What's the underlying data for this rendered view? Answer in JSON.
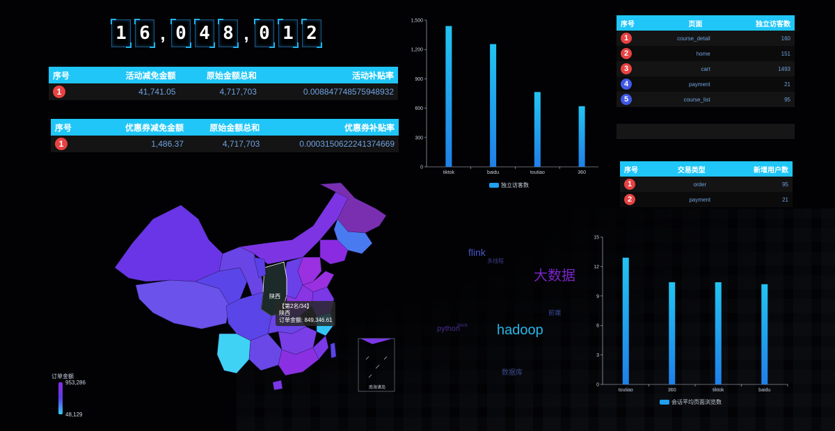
{
  "counter": {
    "chars": [
      "1",
      "6",
      ",",
      "0",
      "4",
      "8",
      ",",
      "0",
      "1",
      "2"
    ]
  },
  "activity_table": {
    "headers": [
      "序号",
      "活动减免金额",
      "原始金额总和",
      "活动补贴率"
    ],
    "rows": [
      {
        "rank": "1",
        "discount": "41,741.05",
        "total": "4,717,703",
        "rate": "0.008847748575948932"
      }
    ]
  },
  "coupon_table": {
    "headers": [
      "序号",
      "优惠券减免金额",
      "原始金额总和",
      "优惠券补贴率"
    ],
    "rows": [
      {
        "rank": "1",
        "discount": "1,486.37",
        "total": "4,717,703",
        "rate": "0.0003150622241374669"
      }
    ]
  },
  "page_table": {
    "headers": [
      "序号",
      "页面",
      "独立访客数"
    ],
    "rows": [
      {
        "rank": "1",
        "page": "course_detail",
        "visitors": "160",
        "color": "#e84242"
      },
      {
        "rank": "2",
        "page": "home",
        "visitors": "151",
        "color": "#e84242"
      },
      {
        "rank": "3",
        "page": "cart",
        "visitors": "1493",
        "color": "#e84242"
      },
      {
        "rank": "4",
        "page": "payment",
        "visitors": "21",
        "color": "#3f58e6"
      },
      {
        "rank": "5",
        "page": "course_list",
        "visitors": "95",
        "color": "#3f58e6"
      }
    ]
  },
  "trade_table": {
    "headers": [
      "序号",
      "交易类型",
      "新增用户数"
    ],
    "rows": [
      {
        "rank": "1",
        "type": "order",
        "count": "95"
      },
      {
        "rank": "2",
        "type": "payment",
        "count": "21"
      }
    ]
  },
  "map": {
    "legend_title": "订单金额",
    "legend_max": "953,286",
    "legend_min": "48,129",
    "highlight_label": "陕西",
    "tooltip": {
      "line1": "【第2名/34】",
      "line2": "陕西",
      "line3": "订单金额: 849,346.61"
    },
    "inset_label": "南海诸岛",
    "colors": {
      "high": "#8a2be2",
      "mid": "#5b45e8",
      "low": "#33c6f5",
      "selected": "#1d2a2a"
    }
  },
  "word_cloud": [
    {
      "text": "flink",
      "color": "#4a56c8",
      "size": 14
    },
    {
      "text": "多线程",
      "color": "#3a3f8a",
      "size": 8
    },
    {
      "text": "大数据",
      "color": "#7a24c8",
      "size": 20
    },
    {
      "text": "前端",
      "color": "#3c4a9a",
      "size": 9
    },
    {
      "text": "java",
      "color": "#3a2a7a",
      "size": 8
    },
    {
      "text": "python",
      "color": "#4a2a8a",
      "size": 11
    },
    {
      "text": "hadoop",
      "color": "#28b6e8",
      "size": 20
    },
    {
      "text": "数据库",
      "color": "#3a4a8a",
      "size": 10
    }
  ],
  "chart_data": [
    {
      "type": "bar",
      "categories": [
        "tiktok",
        "baidu",
        "toutiao",
        "360"
      ],
      "series": [
        {
          "name": "独立访客数",
          "values": [
            1440,
            1255,
            765,
            620
          ]
        }
      ],
      "ylim": [
        0,
        1500
      ],
      "yticks": [
        "0",
        "300",
        "600",
        "900",
        "1,200",
        "1,500"
      ],
      "legend": "bottom"
    },
    {
      "type": "bar",
      "categories": [
        "toutiao",
        "360",
        "tiktok",
        "baidu"
      ],
      "series": [
        {
          "name": "会话平均页面浏览数",
          "values": [
            12.9,
            10.4,
            10.4,
            10.2
          ]
        }
      ],
      "ylim": [
        0,
        15
      ],
      "yticks": [
        "0",
        "3",
        "6",
        "9",
        "12",
        "15"
      ],
      "legend": "bottom"
    }
  ]
}
